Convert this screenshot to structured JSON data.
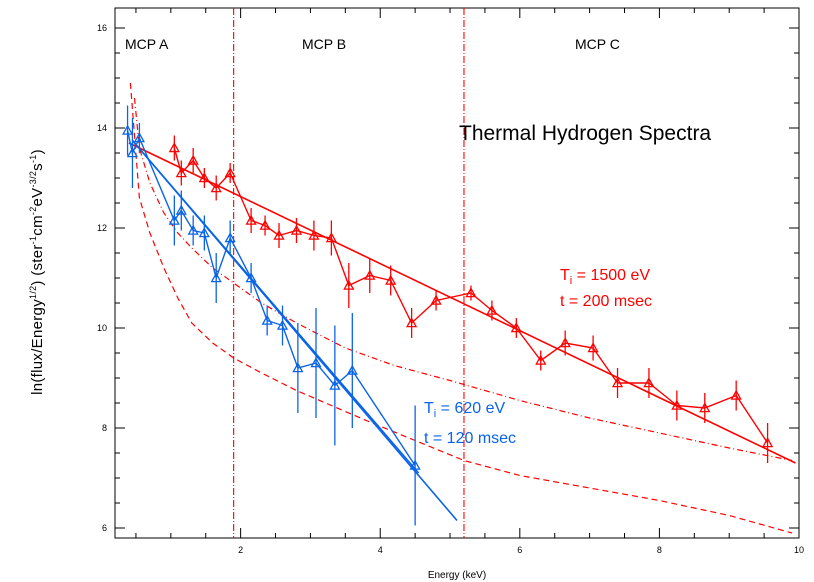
{
  "chart_data": {
    "type": "line",
    "title": "Thermal Hydrogen Spectra",
    "xlabel": "Energy (keV)",
    "ylabel": {
      "base": "ln(flux/Energy",
      "sup1": "1/2",
      "mid": ")  (ster",
      "sup2": "-1",
      "m2": "cm",
      "sup3": "-2",
      "m3": "eV",
      "sup4": "-3/2",
      "m4": "s",
      "sup5": "-1",
      "end": ")"
    },
    "xlim": [
      0.2,
      10.0
    ],
    "ylim": [
      5.8,
      16.4
    ],
    "x_ticks": [
      2,
      4,
      6,
      8,
      10
    ],
    "y_ticks": [
      6,
      8,
      10,
      12,
      14,
      16
    ],
    "x_tick_labels": [
      "2",
      "4",
      "6",
      "8",
      "10"
    ],
    "y_tick_labels": [
      "6",
      "8",
      "10",
      "12",
      "14",
      "16"
    ],
    "regions": [
      {
        "label": "MCP  A"
      },
      {
        "label": "MCP  B"
      },
      {
        "label": "MCP  C"
      }
    ],
    "region_boundaries": [
      1.9,
      5.2
    ],
    "annotations": [
      {
        "sym": "T",
        "sub": "i",
        "text": " = 1500 eV",
        "line2": "t = 200 msec",
        "color": "#ff0000"
      },
      {
        "sym": "T",
        "sub": "i",
        "text": " = 620 eV",
        "line2": "t = 120 msec",
        "color": "#0a64e6"
      }
    ],
    "series": [
      {
        "name": "Ti = 1500 eV, t = 200 msec",
        "color": "#ff0000",
        "x": [
          1.05,
          1.15,
          1.32,
          1.48,
          1.65,
          1.85,
          2.15,
          2.35,
          2.55,
          2.8,
          3.05,
          3.3,
          3.55,
          3.85,
          4.15,
          4.45,
          4.8,
          5.3,
          5.6,
          5.95,
          6.3,
          6.65,
          7.05,
          7.4,
          7.85,
          8.25,
          8.65,
          9.1,
          9.55
        ],
        "y": [
          13.6,
          13.1,
          13.35,
          13.0,
          12.8,
          13.1,
          12.15,
          12.05,
          11.85,
          11.95,
          11.85,
          11.8,
          10.85,
          11.05,
          10.95,
          10.1,
          10.55,
          10.7,
          10.35,
          10.0,
          9.35,
          9.7,
          9.6,
          8.9,
          8.9,
          8.45,
          8.4,
          8.65,
          7.7
        ],
        "yerr": [
          0.25,
          0.25,
          0.25,
          0.2,
          0.25,
          0.2,
          0.25,
          0.2,
          0.25,
          0.25,
          0.3,
          0.35,
          0.45,
          0.35,
          0.3,
          0.3,
          0.2,
          0.15,
          0.2,
          0.2,
          0.2,
          0.25,
          0.25,
          0.3,
          0.3,
          0.3,
          0.3,
          0.3,
          0.4
        ]
      },
      {
        "name": "Ti = 620 eV, t = 120 msec",
        "color": "#0a64e6",
        "x": [
          0.38,
          0.45,
          0.55,
          1.05,
          1.15,
          1.32,
          1.48,
          1.65,
          1.85,
          2.15,
          2.38,
          2.6,
          2.82,
          3.08,
          3.35,
          3.6,
          4.5
        ],
        "y": [
          13.95,
          13.5,
          13.8,
          12.15,
          12.35,
          11.95,
          11.9,
          11.0,
          11.8,
          11.0,
          10.15,
          10.05,
          9.2,
          9.3,
          8.85,
          9.15,
          7.25
        ],
        "yerr": [
          0.5,
          0.7,
          0.3,
          0.5,
          0.4,
          0.3,
          0.35,
          0.5,
          0.35,
          0.3,
          0.3,
          0.4,
          0.9,
          1.1,
          1.2,
          1.15,
          1.2
        ]
      }
    ],
    "fits": [
      {
        "color": "#ff0000",
        "x": [
          0.4,
          9.95
        ],
        "y": [
          13.7,
          7.3
        ]
      },
      {
        "color": "#0a64e6",
        "x": [
          0.45,
          5.1
        ],
        "y": [
          13.75,
          6.15
        ]
      },
      {
        "color": "#0a64e6",
        "x": [
          0.45,
          4.55
        ],
        "y": [
          13.75,
          7.1
        ]
      }
    ],
    "background_curves": [
      {
        "color": "#ff0000",
        "style": "dashed",
        "x": [
          0.48,
          0.55,
          0.7,
          0.9,
          1.1,
          1.3,
          1.6,
          1.9,
          2.3,
          2.8,
          3.5,
          4.2,
          5.0,
          6.0,
          7.0,
          8.0,
          9.0,
          9.9
        ],
        "y": [
          14.6,
          13.6,
          12.9,
          12.3,
          11.9,
          11.6,
          11.2,
          10.9,
          10.5,
          10.1,
          9.6,
          9.25,
          8.95,
          8.55,
          8.2,
          7.9,
          7.6,
          7.35
        ]
      },
      {
        "color": "#ff0000",
        "style": "dashed",
        "x": [
          0.42,
          0.55,
          0.7,
          0.9,
          1.1,
          1.3,
          1.6,
          1.9,
          2.3,
          2.8,
          3.3,
          3.8,
          4.5,
          5.2,
          6.0,
          7.0,
          8.0,
          9.0,
          9.9
        ],
        "y": [
          14.9,
          12.6,
          11.9,
          11.2,
          10.6,
          10.1,
          9.7,
          9.4,
          9.1,
          8.75,
          8.45,
          8.15,
          7.75,
          7.35,
          7.05,
          6.8,
          6.55,
          6.25,
          5.9
        ]
      }
    ]
  }
}
